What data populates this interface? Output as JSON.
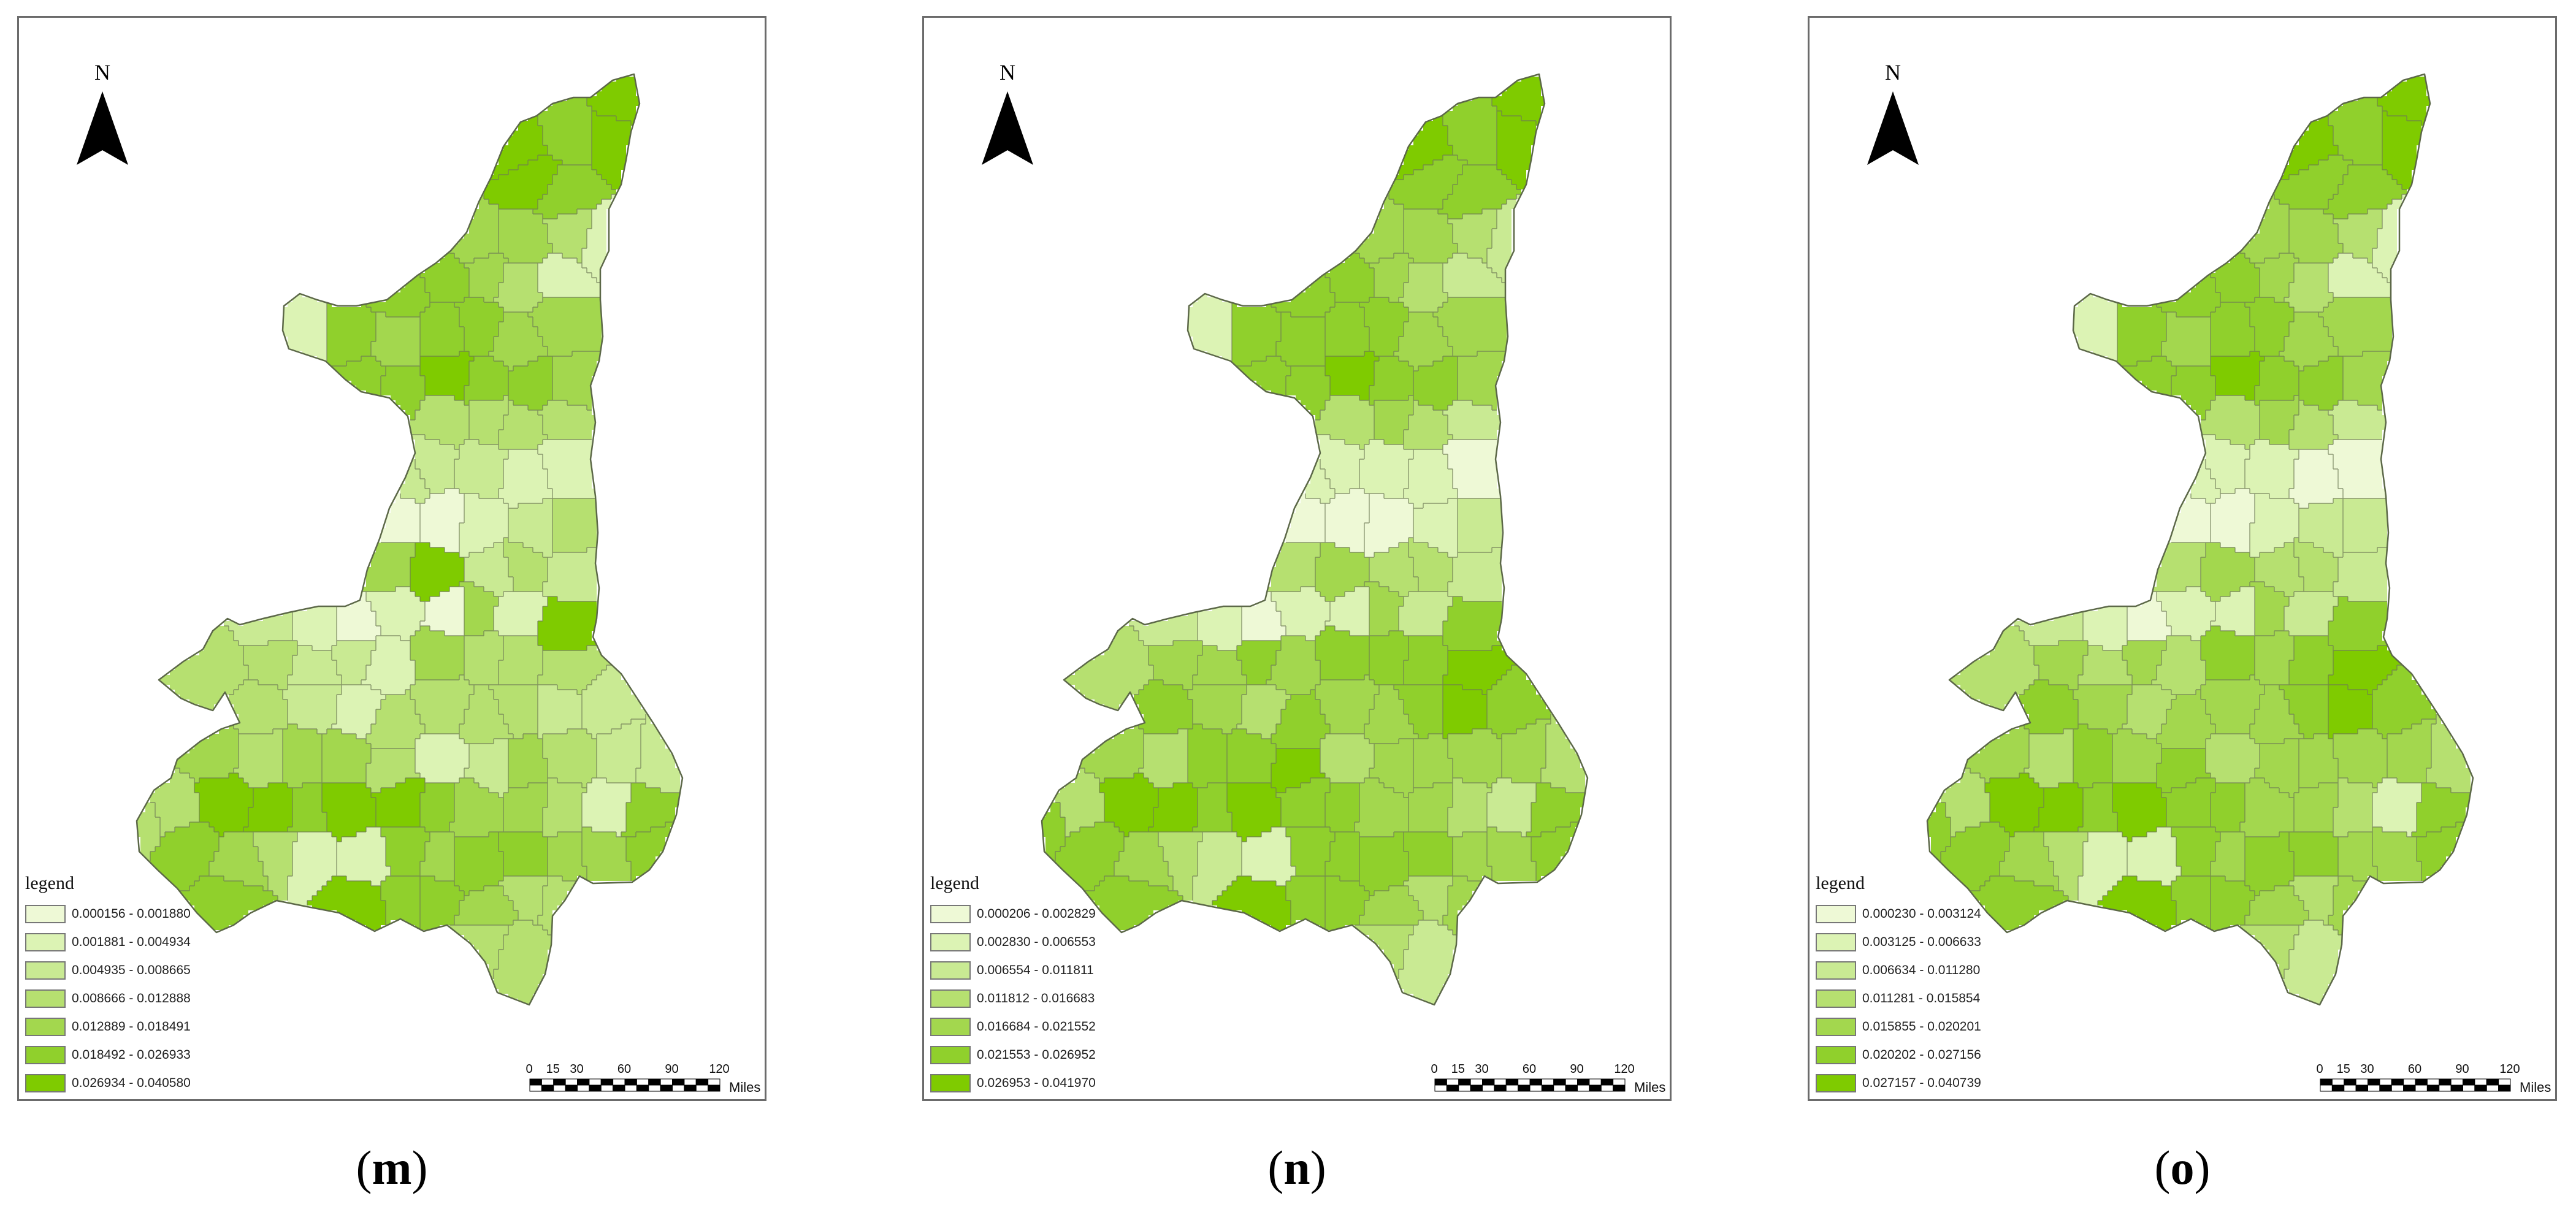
{
  "colors": {
    "classes": [
      "#eef9d6",
      "#dcf3b4",
      "#c9ea93",
      "#b6e070",
      "#a3d74e",
      "#90d02c",
      "#7fcb00"
    ],
    "outline": "#6d7a55",
    "frame": "#6b6b6b"
  },
  "north_arrow": {
    "letter": "N",
    "icon": "north-arrow-icon"
  },
  "scale": {
    "ticks": [
      "0",
      "15",
      "30",
      "60",
      "90",
      "120"
    ],
    "unit": "Miles"
  },
  "panels": [
    {
      "id": "m",
      "caption_open": "(",
      "caption_letter": "m",
      "caption_close": ")",
      "legend_title": "legend",
      "legend": [
        "0.000156 - 0.001880",
        "0.001881 - 0.004934",
        "0.004935 - 0.008665",
        "0.008666 - 0.012888",
        "0.012889 - 0.018491",
        "0.018492 - 0.026933",
        "0.026934 - 0.040580"
      ],
      "region_levels": [
        6,
        6,
        5,
        6,
        6,
        5,
        4,
        4,
        3,
        1,
        5,
        5,
        4,
        3,
        1,
        1,
        5,
        4,
        5,
        5,
        4,
        4,
        5,
        5,
        6,
        5,
        5,
        4,
        3,
        3,
        3,
        3,
        2,
        2,
        2,
        1,
        1,
        0,
        0,
        1,
        2,
        3,
        4,
        6,
        2,
        3,
        2,
        2,
        1,
        0,
        1,
        0,
        4,
        1,
        6,
        3,
        3,
        2,
        2,
        1,
        4,
        3,
        3,
        3,
        3,
        2,
        1,
        3,
        3,
        3,
        3,
        2,
        2,
        4,
        3,
        4,
        4,
        3,
        1,
        2,
        4,
        3,
        2,
        2,
        3,
        3
      ]
    },
    {
      "id": "n",
      "caption_open": "(",
      "caption_letter": "n",
      "caption_close": ")",
      "legend_title": "legend",
      "legend": [
        "0.000206 - 0.002829",
        "0.002830 - 0.006553",
        "0.006554 - 0.011811",
        "0.011812 - 0.016683",
        "0.016684 - 0.021552",
        "0.021553 - 0.026952",
        "0.026953 - 0.041970"
      ],
      "region_levels": [
        6,
        6,
        5,
        6,
        5,
        5,
        4,
        4,
        3,
        2,
        5,
        5,
        4,
        3,
        2,
        1,
        5,
        5,
        5,
        5,
        4,
        4,
        5,
        5,
        6,
        5,
        5,
        4,
        3,
        4,
        3,
        2,
        1,
        1,
        1,
        1,
        0,
        0,
        0,
        0,
        1,
        2,
        3,
        4,
        3,
        3,
        2,
        2,
        1,
        0,
        1,
        1,
        4,
        2,
        5,
        3,
        4,
        4,
        5,
        4,
        5,
        5,
        5,
        6,
        5,
        4,
        3,
        5,
        4,
        4,
        5,
        6,
        5,
        4,
        3,
        5,
        5,
        6,
        3,
        4,
        4,
        4,
        4,
        3,
        5,
        3
      ]
    },
    {
      "id": "o",
      "caption_open": "(",
      "caption_letter": "o",
      "caption_close": ")",
      "legend_title": "legend",
      "legend": [
        "0.000230 - 0.003124",
        "0.003125 - 0.006633",
        "0.006634 - 0.011280",
        "0.011281 - 0.015854",
        "0.015855 - 0.020201",
        "0.020202 - 0.027156",
        "0.027157 - 0.040739"
      ],
      "region_levels": [
        6,
        6,
        5,
        6,
        5,
        5,
        4,
        4,
        3,
        1,
        5,
        5,
        4,
        3,
        1,
        1,
        5,
        4,
        5,
        5,
        4,
        4,
        5,
        5,
        6,
        5,
        5,
        4,
        3,
        4,
        3,
        2,
        1,
        1,
        1,
        0,
        0,
        0,
        0,
        1,
        2,
        2,
        3,
        4,
        3,
        3,
        2,
        2,
        1,
        0,
        1,
        1,
        4,
        2,
        5,
        3,
        4,
        3,
        4,
        3,
        5,
        4,
        5,
        6,
        5,
        4,
        3,
        4,
        4,
        4,
        5,
        6,
        5,
        4,
        3,
        5,
        4,
        5,
        3,
        4,
        4,
        4,
        4,
        3,
        5,
        3
      ]
    }
  ]
}
